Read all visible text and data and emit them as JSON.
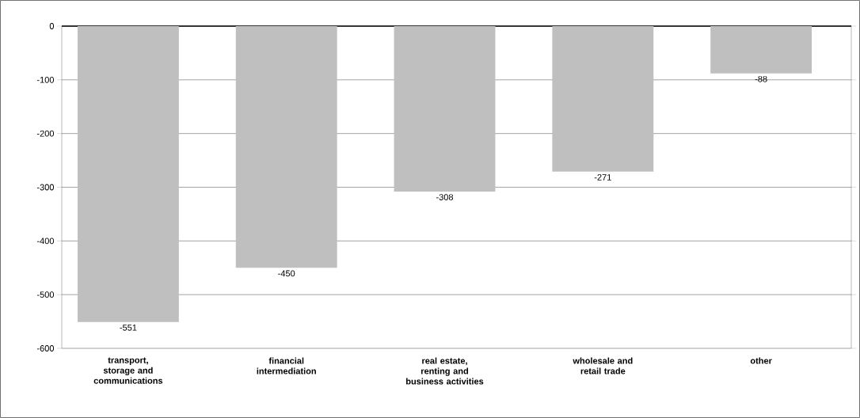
{
  "chart_data": {
    "type": "bar",
    "categories": [
      "transport, storage and communications",
      "financial intermediation",
      "real estate, renting and business activities",
      "wholesale and retail trade",
      "other"
    ],
    "values": [
      -551,
      -450,
      -308,
      -271,
      -88
    ],
    "color": "#bfbfbf",
    "ylim": [
      -600,
      0
    ],
    "yticks": [
      -600,
      -500,
      -400,
      -300,
      -200,
      -100,
      0
    ],
    "grid": "y",
    "data_labels": true
  }
}
